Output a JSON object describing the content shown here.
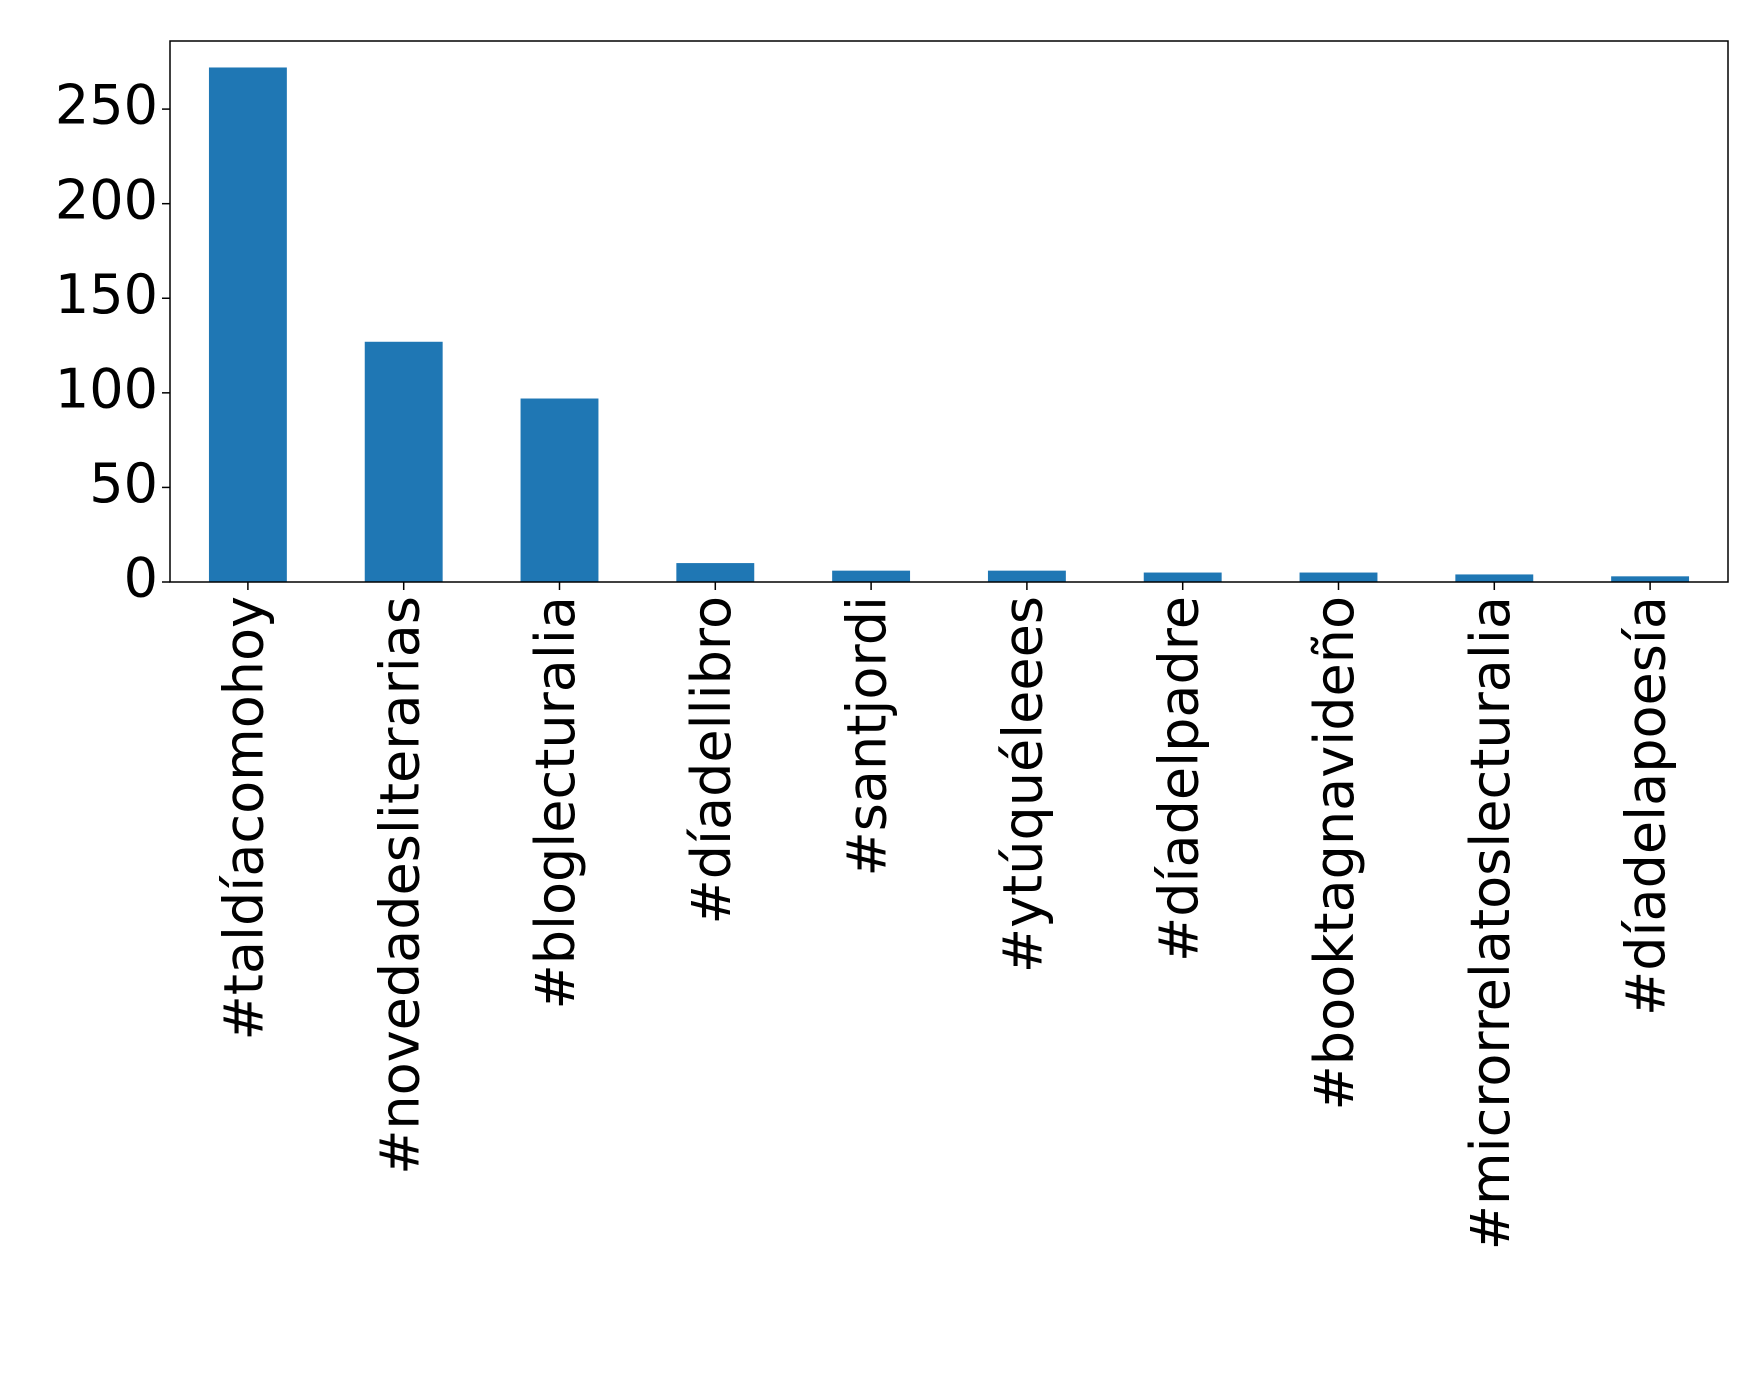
{
  "chart_data": {
    "type": "bar",
    "categories": [
      "#taldíacomohoy",
      "#novedadesliterarias",
      "#bloglecturalia",
      "#díadellibro",
      "#santjordi",
      "#ytúquéleees",
      "#díadelpadre",
      "#booktagnavideño",
      "#microrrelatoslecturalia",
      "#díadelapoesía"
    ],
    "values": [
      272,
      127,
      97,
      10,
      6,
      6,
      5,
      5,
      4,
      3
    ],
    "color": "#1f77b4",
    "ylim": [
      0,
      286
    ],
    "yticks": [
      0,
      50,
      100,
      150,
      200,
      250
    ],
    "grid": false
  }
}
